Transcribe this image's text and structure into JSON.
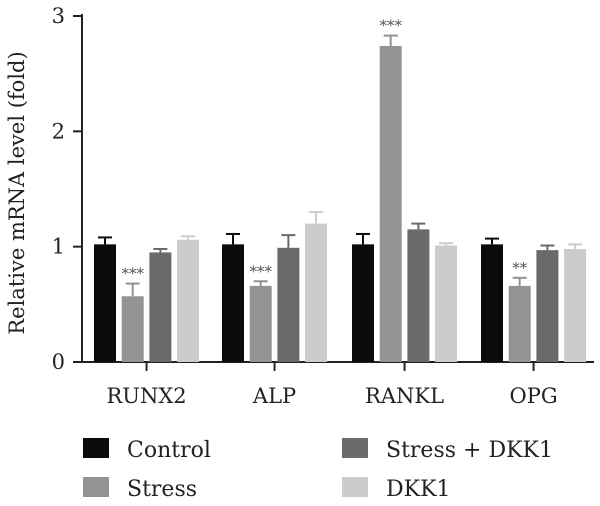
{
  "chart_data": {
    "type": "bar",
    "ylabel": "Relative mRNA level (fold)",
    "ylim": [
      0,
      3
    ],
    "yticks": [
      0,
      1,
      2,
      3
    ],
    "categories": [
      "RUNX2",
      "ALP",
      "RANKL",
      "OPG"
    ],
    "series": [
      {
        "name": "Control",
        "color": "#0b0b0b",
        "values": [
          1.02,
          1.02,
          1.02,
          1.02
        ],
        "errors": [
          0.06,
          0.09,
          0.09,
          0.05
        ],
        "significance": [
          "",
          "",
          "",
          ""
        ]
      },
      {
        "name": "Stress",
        "color": "#939393",
        "values": [
          0.57,
          0.66,
          2.74,
          0.66
        ],
        "errors": [
          0.11,
          0.04,
          0.09,
          0.07
        ],
        "significance": [
          "***",
          "***",
          "***",
          "**"
        ]
      },
      {
        "name": "Stress + DKK1",
        "color": "#6a6a6a",
        "values": [
          0.95,
          0.99,
          1.15,
          0.97
        ],
        "errors": [
          0.03,
          0.11,
          0.05,
          0.04
        ],
        "significance": [
          "",
          "",
          "",
          ""
        ]
      },
      {
        "name": "DKK1",
        "color": "#cccccc",
        "values": [
          1.06,
          1.2,
          1.01,
          0.98
        ],
        "errors": [
          0.03,
          0.1,
          0.02,
          0.04
        ],
        "significance": [
          "",
          "",
          "",
          ""
        ]
      }
    ],
    "legend_position": "bottom",
    "grid": false
  }
}
